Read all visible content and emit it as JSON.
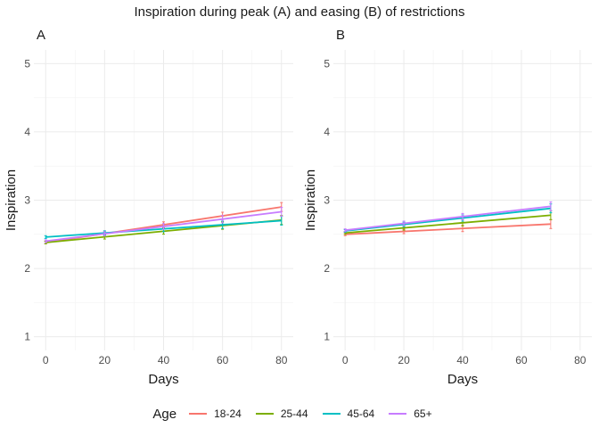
{
  "title": "Inspiration during peak (A) and easing (B) of restrictions",
  "legend": {
    "title": "Age",
    "entries": [
      {
        "label": "18-24",
        "color": "#F8766D"
      },
      {
        "label": "25-44",
        "color": "#7CAE00"
      },
      {
        "label": "45-64",
        "color": "#00BFC4"
      },
      {
        "label": "65+",
        "color": "#C77CFF"
      }
    ]
  },
  "chart_data": [
    {
      "type": "line",
      "panel_label": "A",
      "xlabel": "Days",
      "ylabel": "Inspiration",
      "xlim": [
        -4,
        84
      ],
      "ylim": [
        0.8,
        5.2
      ],
      "x_ticks": [
        0,
        20,
        40,
        60,
        80
      ],
      "y_ticks": [
        1,
        2,
        3,
        4,
        5
      ],
      "grid": true,
      "error_bar_x": [
        0,
        20,
        40,
        60,
        80
      ],
      "series": [
        {
          "name": "18-24",
          "color": "#F8766D",
          "x": [
            0,
            80
          ],
          "y": [
            2.38,
            2.9
          ]
        },
        {
          "name": "25-44",
          "color": "#7CAE00",
          "x": [
            0,
            80
          ],
          "y": [
            2.38,
            2.71
          ]
        },
        {
          "name": "45-64",
          "color": "#00BFC4",
          "x": [
            0,
            80
          ],
          "y": [
            2.46,
            2.7
          ]
        },
        {
          "name": "65+",
          "color": "#C77CFF",
          "x": [
            0,
            80
          ],
          "y": [
            2.4,
            2.83
          ]
        }
      ]
    },
    {
      "type": "line",
      "panel_label": "B",
      "xlabel": "Days",
      "ylabel": "Inspiration",
      "xlim": [
        -4,
        84
      ],
      "ylim": [
        0.8,
        5.2
      ],
      "x_ticks": [
        0,
        20,
        40,
        60,
        80
      ],
      "y_ticks": [
        1,
        2,
        3,
        4,
        5
      ],
      "grid": true,
      "error_bar_x": [
        0,
        20,
        40,
        70
      ],
      "series": [
        {
          "name": "18-24",
          "color": "#F8766D",
          "x": [
            0,
            70
          ],
          "y": [
            2.5,
            2.65
          ]
        },
        {
          "name": "25-44",
          "color": "#7CAE00",
          "x": [
            0,
            70
          ],
          "y": [
            2.52,
            2.78
          ]
        },
        {
          "name": "45-64",
          "color": "#00BFC4",
          "x": [
            0,
            70
          ],
          "y": [
            2.55,
            2.88
          ]
        },
        {
          "name": "65+",
          "color": "#C77CFF",
          "x": [
            0,
            70
          ],
          "y": [
            2.56,
            2.91
          ]
        }
      ]
    }
  ]
}
